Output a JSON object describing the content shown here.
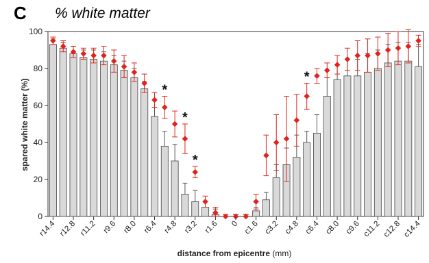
{
  "panel_label": "C",
  "chart_data": {
    "type": "bar",
    "title": "% white matter",
    "xlabel": "distance from epicentre",
    "xlabel_unit": "(mm)",
    "ylabel": "spared white matter (%)",
    "ylim": [
      0,
      100
    ],
    "yticks": [
      0,
      20,
      40,
      60,
      80,
      100
    ],
    "grid": false,
    "categories": [
      "r14.4",
      "r13.6",
      "r12.8",
      "r12.0",
      "r11.2",
      "r10.4",
      "r9.6",
      "r8.8",
      "r8.0",
      "r7.2",
      "r6.4",
      "r5.6",
      "r4.8",
      "r4.0",
      "r3.2",
      "r2.4",
      "r1.6",
      "r0.8",
      "0",
      "c0.8",
      "c1.6",
      "c2.4",
      "c3.2",
      "c4.0",
      "c4.8",
      "c5.6",
      "c6.4",
      "c7.2",
      "c8.0",
      "c8.8",
      "c9.6",
      "c10.4",
      "c11.2",
      "c12.0",
      "c12.8",
      "c13.6",
      "c14.4"
    ],
    "xtick_labels": [
      "r14.4",
      "r12.8",
      "r11.2",
      "r9.6",
      "r8.0",
      "r6.4",
      "r4.8",
      "r3.2",
      "r1.6",
      "0",
      "c1.6",
      "c3.2",
      "c4.8",
      "c6.4",
      "c8.0",
      "c9.6",
      "c11.2",
      "c12.8",
      "c14.4"
    ],
    "series": [
      {
        "style": "bars",
        "color": "#d9d9d9",
        "values": [
          93,
          91,
          88,
          86,
          85,
          84,
          82,
          79,
          75,
          69,
          54,
          38,
          30,
          12,
          8,
          5,
          1,
          0,
          0,
          0,
          3,
          9,
          21,
          28,
          32,
          40,
          45,
          65,
          74,
          76,
          76,
          78,
          80,
          83,
          84,
          84,
          81
        ],
        "errors": [
          3,
          3,
          4,
          4,
          5,
          5,
          5,
          5,
          5,
          4,
          5,
          8,
          9,
          6,
          6,
          3,
          3,
          1,
          1,
          1,
          2,
          4,
          7,
          9,
          12,
          6,
          10,
          10,
          8,
          9,
          9,
          10,
          10,
          10,
          10,
          10,
          12
        ]
      },
      {
        "style": "points",
        "color": "#e0231b",
        "values": [
          95,
          92,
          89,
          88,
          87,
          87,
          84,
          81,
          78,
          72,
          63,
          59,
          50,
          42,
          24,
          8,
          2,
          0,
          0,
          0,
          8,
          33,
          40,
          42,
          52,
          65,
          76,
          79,
          82,
          85,
          87,
          87,
          88,
          90,
          91,
          92,
          95
        ],
        "errors": [
          2,
          3,
          3,
          3,
          4,
          5,
          6,
          6,
          5,
          5,
          4,
          6,
          7,
          8,
          3,
          3,
          3,
          1,
          1,
          1,
          4,
          11,
          15,
          23,
          14,
          7,
          4,
          4,
          5,
          6,
          8,
          9,
          9,
          9,
          9,
          9,
          3
        ]
      }
    ],
    "significance": [
      {
        "category": "r5.6",
        "label": "*"
      },
      {
        "category": "r4.0",
        "label": "*"
      },
      {
        "category": "r3.2",
        "label": "*"
      },
      {
        "category": "c5.6",
        "label": "*"
      }
    ]
  }
}
